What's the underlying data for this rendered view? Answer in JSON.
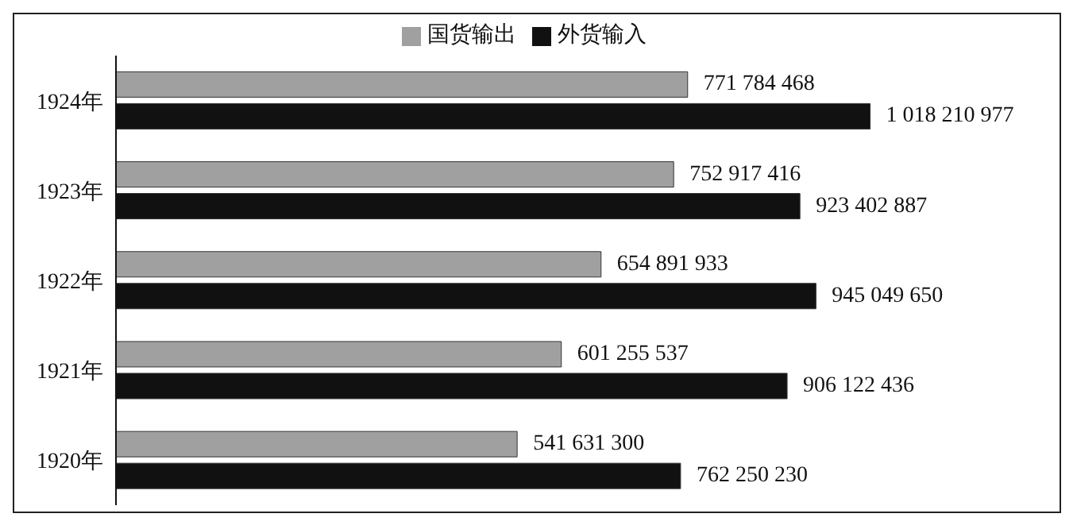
{
  "chart_data": {
    "type": "bar",
    "orientation": "horizontal",
    "categories": [
      "1924年",
      "1923年",
      "1922年",
      "1921年",
      "1920年"
    ],
    "series": [
      {
        "name": "国货输出",
        "color": "#a0a0a0",
        "values": [
          771784468,
          752917416,
          654891933,
          601255537,
          541631300
        ],
        "value_labels": [
          "771 784 468",
          "752 917 416",
          "654 891 933",
          "601 255 537",
          "541 631 300"
        ]
      },
      {
        "name": "外货输入",
        "color": "#111111",
        "values": [
          1018210977,
          923402887,
          945049650,
          906122436,
          762250230
        ],
        "value_labels": [
          "1 018 210 977",
          "923 402 887",
          "945 049 650",
          "906 122 436",
          "762 250 230"
        ]
      }
    ],
    "legend": "top"
  }
}
